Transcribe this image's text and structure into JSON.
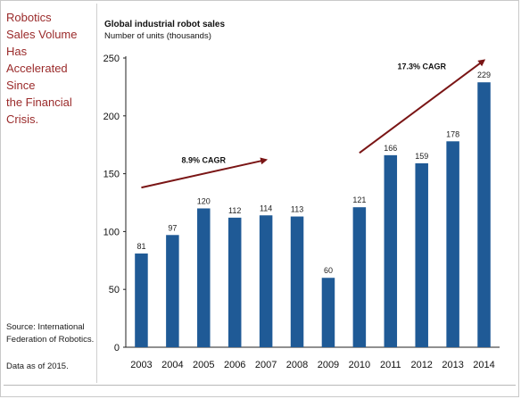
{
  "sidebar": {
    "headline": "Robotics\nSales Volume Has\nAccelerated Since\nthe Financial Crisis.",
    "source": "Source: International Federation of Robotics.",
    "data_as_of": "Data as of 2015."
  },
  "colors": {
    "bar": "#1f5a96",
    "headline": "#9a2a2a",
    "arrow": "#7a1515"
  },
  "chart_data": {
    "type": "bar",
    "title": "Global industrial robot sales",
    "subtitle": "Number of units (thousands)",
    "categories": [
      "2003",
      "2004",
      "2005",
      "2006",
      "2007",
      "2008",
      "2009",
      "2010",
      "2011",
      "2012",
      "2013",
      "2014"
    ],
    "values": [
      81,
      97,
      120,
      112,
      114,
      113,
      60,
      121,
      166,
      159,
      178,
      229
    ],
    "data_labels": [
      "81",
      "97",
      "120",
      "112",
      "114",
      "113",
      "60",
      "121",
      "166",
      "159",
      "178",
      "229"
    ],
    "ylim": [
      0,
      250
    ],
    "yticks": [
      0,
      50,
      100,
      150,
      200,
      250
    ],
    "grid": false,
    "annotations": [
      {
        "text": "8.9% CAGR",
        "from": [
          "2003",
          138
        ],
        "to": [
          "2007",
          162
        ]
      },
      {
        "text": "17.3% CAGR",
        "from": [
          "2010",
          168
        ],
        "to": [
          "2014",
          248
        ]
      }
    ]
  }
}
